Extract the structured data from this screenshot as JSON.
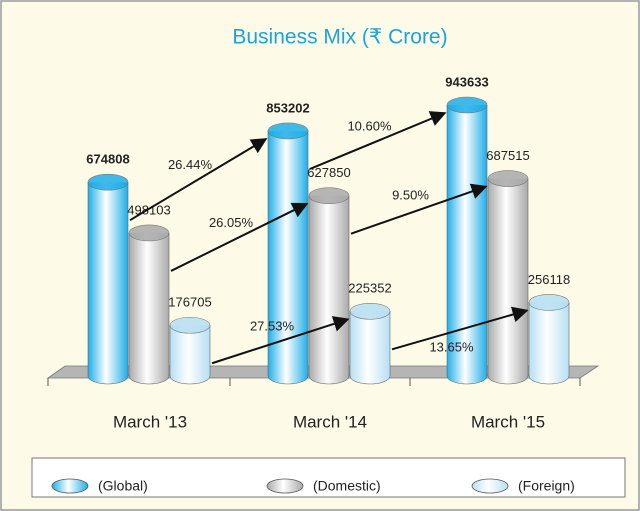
{
  "chart_data": {
    "type": "bar3d",
    "title": "Business Mix (₹ Crore)",
    "categories": [
      "March '13",
      "March '14",
      "March '15"
    ],
    "series": [
      {
        "name": "(Global)",
        "color": "#1eaee8",
        "values": [
          674808,
          853202,
          943633
        ],
        "growth_labels": [
          "26.44%",
          "10.60%"
        ]
      },
      {
        "name": "(Domestic)",
        "color": "#a9a9a9",
        "values": [
          498103,
          627850,
          687515
        ],
        "growth_labels": [
          "26.05%",
          "9.50%"
        ]
      },
      {
        "name": "(Foreign)",
        "color": "#b6dff3",
        "values": [
          176705,
          225352,
          256118
        ],
        "growth_labels": [
          "27.53%",
          "13.65%"
        ]
      }
    ]
  }
}
